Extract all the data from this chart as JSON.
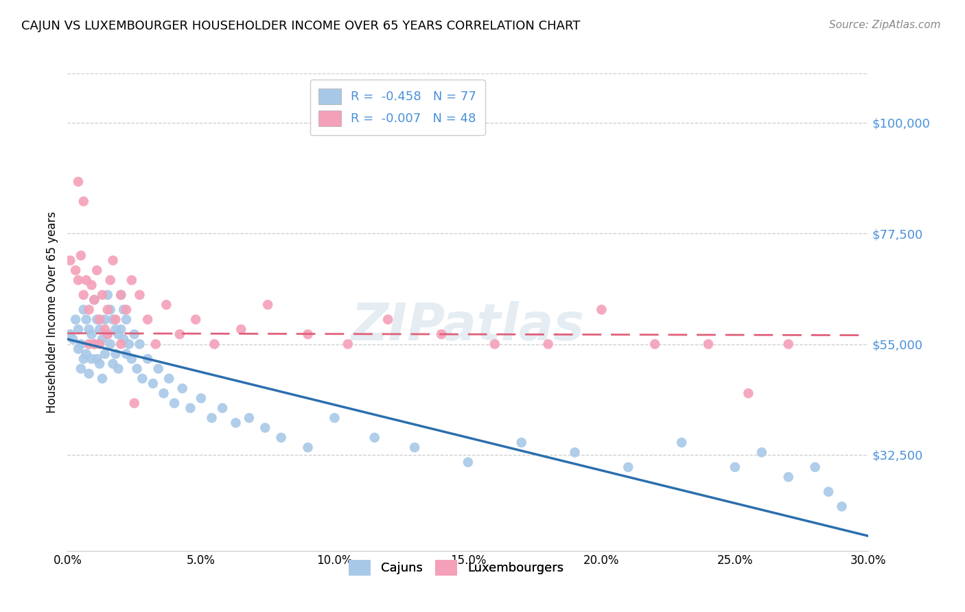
{
  "title": "CAJUN VS LUXEMBOURGER HOUSEHOLDER INCOME OVER 65 YEARS CORRELATION CHART",
  "source": "Source: ZipAtlas.com",
  "ylabel": "Householder Income Over 65 years",
  "ytick_labels": [
    "$100,000",
    "$77,500",
    "$55,000",
    "$32,500"
  ],
  "ytick_values": [
    100000,
    77500,
    55000,
    32500
  ],
  "xlim": [
    0.0,
    0.3
  ],
  "ylim": [
    13000,
    110000
  ],
  "cajun_color": "#a8c8e8",
  "luxembourger_color": "#f4a0b8",
  "cajun_line_color": "#2c6fad",
  "luxembourger_line_color": "#e0607a",
  "cajun_R": -0.458,
  "cajun_N": 77,
  "luxembourger_R": -0.007,
  "luxembourger_N": 48,
  "legend_label_cajun": "Cajuns",
  "legend_label_luxembourger": "Luxembourgers",
  "watermark": "ZIPatlas",
  "grid_color": "#cccccc",
  "axis_color": "#4a90d9",
  "cajun_x": [
    0.001,
    0.002,
    0.003,
    0.004,
    0.004,
    0.005,
    0.005,
    0.006,
    0.006,
    0.007,
    0.007,
    0.008,
    0.008,
    0.009,
    0.009,
    0.01,
    0.01,
    0.011,
    0.011,
    0.012,
    0.012,
    0.013,
    0.013,
    0.014,
    0.014,
    0.015,
    0.015,
    0.016,
    0.016,
    0.017,
    0.017,
    0.018,
    0.018,
    0.019,
    0.019,
    0.02,
    0.02,
    0.021,
    0.021,
    0.022,
    0.022,
    0.023,
    0.024,
    0.025,
    0.026,
    0.027,
    0.028,
    0.03,
    0.032,
    0.034,
    0.036,
    0.038,
    0.04,
    0.043,
    0.046,
    0.05,
    0.054,
    0.058,
    0.063,
    0.068,
    0.074,
    0.08,
    0.09,
    0.1,
    0.115,
    0.13,
    0.15,
    0.17,
    0.19,
    0.21,
    0.23,
    0.25,
    0.26,
    0.27,
    0.28,
    0.285,
    0.29
  ],
  "cajun_y": [
    57000,
    56000,
    60000,
    58000,
    54000,
    55000,
    50000,
    62000,
    52000,
    60000,
    53000,
    58000,
    49000,
    57000,
    52000,
    64000,
    55000,
    60000,
    52000,
    58000,
    51000,
    56000,
    48000,
    60000,
    53000,
    65000,
    57000,
    62000,
    55000,
    60000,
    51000,
    58000,
    53000,
    57000,
    50000,
    65000,
    58000,
    62000,
    56000,
    60000,
    53000,
    55000,
    52000,
    57000,
    50000,
    55000,
    48000,
    52000,
    47000,
    50000,
    45000,
    48000,
    43000,
    46000,
    42000,
    44000,
    40000,
    42000,
    39000,
    40000,
    38000,
    36000,
    34000,
    40000,
    36000,
    34000,
    31000,
    35000,
    33000,
    30000,
    35000,
    30000,
    33000,
    28000,
    30000,
    25000,
    22000
  ],
  "luxembourger_x": [
    0.001,
    0.003,
    0.004,
    0.005,
    0.006,
    0.007,
    0.008,
    0.009,
    0.01,
    0.011,
    0.012,
    0.013,
    0.014,
    0.015,
    0.016,
    0.017,
    0.018,
    0.02,
    0.022,
    0.024,
    0.027,
    0.03,
    0.033,
    0.037,
    0.042,
    0.048,
    0.055,
    0.065,
    0.075,
    0.09,
    0.105,
    0.12,
    0.14,
    0.16,
    0.18,
    0.2,
    0.22,
    0.24,
    0.255,
    0.27,
    0.004,
    0.006,
    0.008,
    0.01,
    0.012,
    0.015,
    0.02,
    0.025
  ],
  "luxembourger_y": [
    72000,
    70000,
    68000,
    73000,
    65000,
    68000,
    62000,
    67000,
    64000,
    70000,
    60000,
    65000,
    58000,
    62000,
    68000,
    72000,
    60000,
    65000,
    62000,
    68000,
    65000,
    60000,
    55000,
    63000,
    57000,
    60000,
    55000,
    58000,
    63000,
    57000,
    55000,
    60000,
    57000,
    55000,
    55000,
    62000,
    55000,
    55000,
    45000,
    55000,
    88000,
    84000,
    55000,
    55000,
    55000,
    57000,
    55000,
    43000
  ]
}
